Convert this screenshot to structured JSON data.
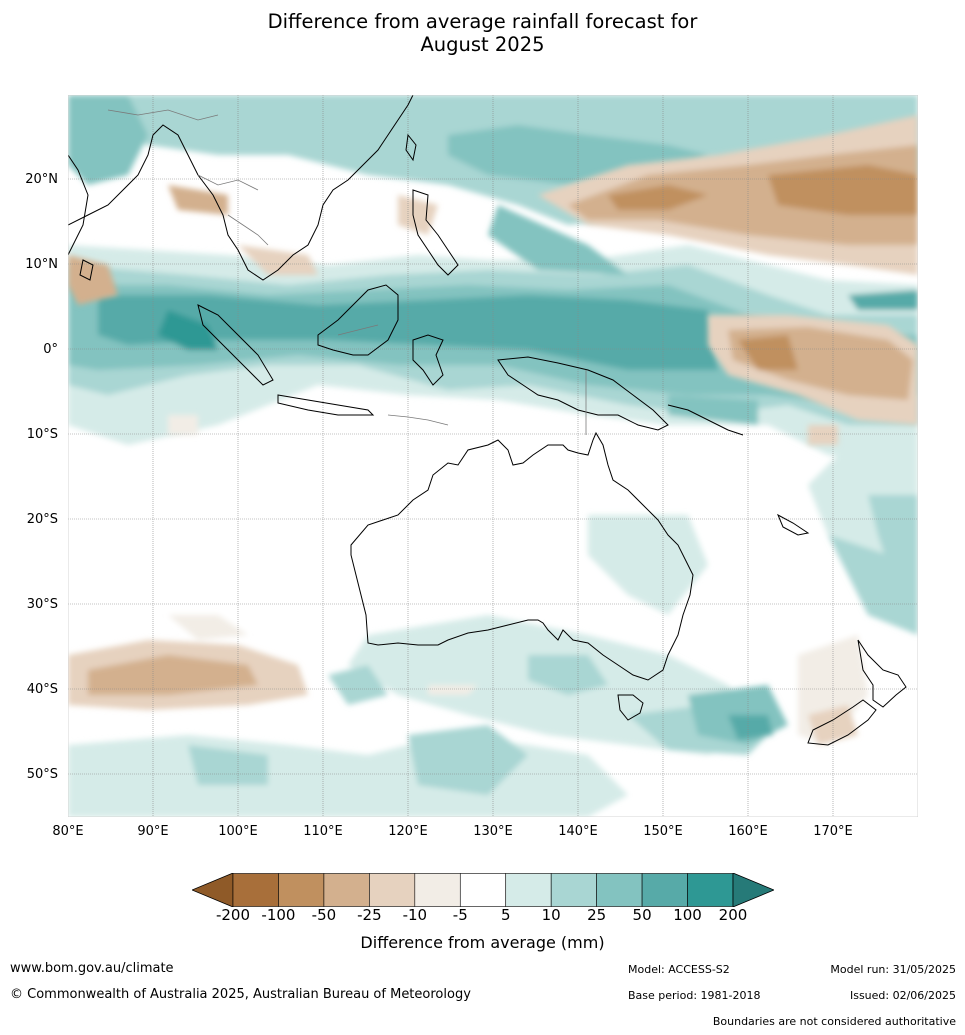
{
  "title_line1": "Difference from average rainfall forecast for",
  "title_line2": "August 2025",
  "lat_ticks": [
    {
      "value": 20,
      "label": "20°N"
    },
    {
      "value": 10,
      "label": "10°N"
    },
    {
      "value": 0,
      "label": "0°"
    },
    {
      "value": -10,
      "label": "10°S"
    },
    {
      "value": -20,
      "label": "20°S"
    },
    {
      "value": -30,
      "label": "30°S"
    },
    {
      "value": -40,
      "label": "40°S"
    },
    {
      "value": -50,
      "label": "50°S"
    }
  ],
  "lon_ticks": [
    {
      "value": 80,
      "label": "80°E"
    },
    {
      "value": 90,
      "label": "90°E"
    },
    {
      "value": 100,
      "label": "100°E"
    },
    {
      "value": 110,
      "label": "110°E"
    },
    {
      "value": 120,
      "label": "120°E"
    },
    {
      "value": 130,
      "label": "130°E"
    },
    {
      "value": 140,
      "label": "140°E"
    },
    {
      "value": 150,
      "label": "150°E"
    },
    {
      "value": 160,
      "label": "160°E"
    },
    {
      "value": 170,
      "label": "170°E"
    }
  ],
  "colorbar": {
    "ticks": [
      "-200",
      "-100",
      "-50",
      "-25",
      "-10",
      "-5",
      "5",
      "10",
      "25",
      "50",
      "100",
      "200"
    ],
    "colors": [
      "#a86f3a",
      "#c0905f",
      "#d3b08e",
      "#e6d2bf",
      "#f2ede6",
      "#ffffff",
      "#d5ebe8",
      "#a9d6d3",
      "#83c3c0",
      "#57aaa8",
      "#2e9894"
    ],
    "under_color": "#8f5a28",
    "over_color": "#267a78",
    "label": "Difference from average (mm)"
  },
  "footer": {
    "url": "www.bom.gov.au/climate",
    "copyright": "© Commonwealth of Australia 2025, Australian Bureau of Meteorology",
    "model": "Model: ACCESS-S2",
    "model_run": "Model run: 31/05/2025",
    "base_period": "Base period: 1981-2018",
    "issued": "Issued: 02/06/2025",
    "disclaimer": "Boundaries are not considered authoritative"
  },
  "map_extent": {
    "lon_min": 80,
    "lon_max": 180,
    "lat_min": -55,
    "lat_max": 30
  }
}
